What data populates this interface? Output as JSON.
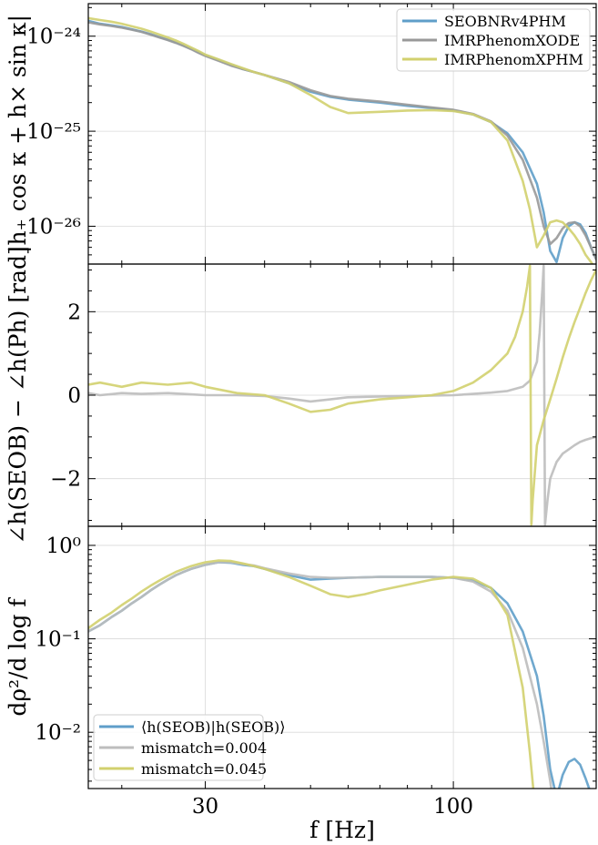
{
  "chart_data": [
    {
      "type": "line",
      "panel": "amplitude",
      "ylabel": "|h₊ cos κ + h× sin κ|",
      "yscale": "log",
      "xscale": "log",
      "xlim": [
        17,
        200
      ],
      "ylim": [
        4e-27,
        2.2e-24
      ],
      "yticks": [
        1e-26,
        1e-25,
        1e-24
      ],
      "ytick_labels": [
        "10⁻²⁶",
        "10⁻²⁵",
        "10⁻²⁴"
      ],
      "grid": true,
      "legend": "top-right",
      "series": [
        {
          "name": "SEOBNRv4PHM",
          "color": "#5f9ec9",
          "x": [
            17,
            18,
            19,
            20,
            21,
            22,
            23,
            24,
            25,
            26,
            27,
            28,
            29,
            30,
            32,
            34,
            36,
            38,
            40,
            45,
            50,
            55,
            60,
            70,
            80,
            90,
            100,
            110,
            120,
            130,
            140,
            150,
            155,
            160,
            165,
            170,
            175,
            180,
            185,
            190,
            195,
            200
          ],
          "y": [
            1.45e-24,
            1.35e-24,
            1.3e-24,
            1.25e-24,
            1.18e-24,
            1.12e-24,
            1.05e-24,
            9.8e-25,
            9.2e-25,
            8.6e-25,
            8e-25,
            7.4e-25,
            6.8e-25,
            6.3e-25,
            5.6e-25,
            5e-25,
            4.5e-25,
            4.2e-25,
            3.9e-25,
            3.2e-25,
            2.6e-25,
            2.3e-25,
            2.15e-25,
            2e-25,
            1.85e-25,
            1.75e-25,
            1.65e-25,
            1.5e-25,
            1.25e-25,
            9.5e-26,
            6e-26,
            2.8e-26,
            1.4e-26,
            5.5e-27,
            4.2e-27,
            7.5e-27,
            1e-26,
            1.1e-26,
            1.05e-26,
            8.5e-27,
            6e-27,
            4.5e-27
          ]
        },
        {
          "name": "IMRPhenomXODE",
          "color": "#999999",
          "x": [
            17,
            18,
            19,
            20,
            21,
            22,
            23,
            24,
            25,
            26,
            27,
            28,
            29,
            30,
            32,
            34,
            36,
            38,
            40,
            45,
            50,
            55,
            60,
            70,
            80,
            90,
            100,
            110,
            120,
            130,
            140,
            150,
            155,
            160,
            165,
            170,
            175,
            180,
            185,
            190,
            195,
            200
          ],
          "y": [
            1.4e-24,
            1.33e-24,
            1.28e-24,
            1.23e-24,
            1.17e-24,
            1.11e-24,
            1.04e-24,
            9.7e-25,
            9.1e-25,
            8.5e-25,
            7.9e-25,
            7.3e-25,
            6.7e-25,
            6.2e-25,
            5.5e-25,
            4.9e-25,
            4.5e-25,
            4.2e-25,
            3.9e-25,
            3.3e-25,
            2.7e-25,
            2.35e-25,
            2.2e-25,
            2.05e-25,
            1.9e-25,
            1.78e-25,
            1.68e-25,
            1.52e-25,
            1.27e-25,
            9e-26,
            5e-26,
            2e-26,
            1e-26,
            6.5e-27,
            7.5e-27,
            9.5e-27,
            1.08e-26,
            1.1e-26,
            1e-26,
            8e-27,
            6e-27,
            4.5e-27
          ]
        },
        {
          "name": "IMRPhenomXPHM",
          "color": "#d2d06e",
          "x": [
            17,
            18,
            19,
            20,
            21,
            22,
            23,
            24,
            25,
            26,
            27,
            28,
            29,
            30,
            32,
            34,
            36,
            38,
            40,
            45,
            50,
            55,
            60,
            70,
            80,
            90,
            100,
            110,
            120,
            130,
            140,
            145,
            150,
            155,
            160,
            165,
            170,
            175,
            180,
            185,
            190,
            195,
            200
          ],
          "y": [
            1.55e-24,
            1.48e-24,
            1.42e-24,
            1.35e-24,
            1.27e-24,
            1.2e-24,
            1.12e-24,
            1.04e-24,
            9.7e-25,
            9e-25,
            8.3e-25,
            7.6e-25,
            7e-25,
            6.4e-25,
            5.7e-25,
            5.1e-25,
            4.6e-25,
            4.2e-25,
            3.9e-25,
            3.2e-25,
            2.4e-25,
            1.8e-25,
            1.55e-25,
            1.6e-25,
            1.65e-25,
            1.67e-25,
            1.63e-25,
            1.5e-25,
            1.25e-25,
            8e-26,
            3e-26,
            1.5e-26,
            6e-27,
            8e-27,
            1.1e-26,
            1.15e-26,
            1.1e-26,
            9.5e-27,
            8e-27,
            6.5e-27,
            5e-27,
            4.2e-27,
            3.5e-27
          ]
        }
      ]
    },
    {
      "type": "line",
      "panel": "phase",
      "ylabel": "∠h(SEOB) − ∠h(Ph) [rad]",
      "xscale": "log",
      "xlim": [
        17,
        200
      ],
      "ylim": [
        -3.14159,
        3.14159
      ],
      "yticks": [
        -2,
        0,
        2
      ],
      "ytick_labels": [
        "−2",
        "0",
        "2"
      ],
      "grid": true,
      "series": [
        {
          "name": "mismatch=0.004",
          "color": "#bdbdbd",
          "x": [
            17,
            18,
            20,
            22,
            25,
            28,
            30,
            35,
            40,
            45,
            50,
            55,
            60,
            70,
            80,
            90,
            100,
            110,
            120,
            130,
            140,
            145,
            150,
            152,
            154,
            155,
            156,
            158,
            160,
            165,
            170,
            175,
            180,
            185,
            190,
            195,
            200
          ],
          "y": [
            0.05,
            0.0,
            0.05,
            0.03,
            0.05,
            0.02,
            0.0,
            0.0,
            -0.02,
            -0.08,
            -0.15,
            -0.1,
            -0.05,
            -0.03,
            -0.02,
            -0.01,
            0.0,
            0.03,
            0.06,
            0.1,
            0.2,
            0.35,
            0.8,
            1.5,
            2.5,
            3.1,
            -3.1,
            -2.5,
            -2.0,
            -1.6,
            -1.4,
            -1.3,
            -1.2,
            -1.12,
            -1.07,
            -1.03,
            -1.0
          ]
        },
        {
          "name": "mismatch=0.045",
          "color": "#d2d06e",
          "x": [
            17,
            18,
            20,
            22,
            25,
            28,
            30,
            35,
            40,
            45,
            50,
            55,
            60,
            70,
            80,
            90,
            100,
            110,
            120,
            130,
            135,
            140,
            143,
            145,
            146,
            147,
            150,
            155,
            160,
            165,
            170,
            175,
            180,
            185,
            190,
            195,
            200
          ],
          "y": [
            0.25,
            0.3,
            0.2,
            0.3,
            0.25,
            0.3,
            0.2,
            0.05,
            0.0,
            -0.2,
            -0.4,
            -0.35,
            -0.2,
            -0.1,
            -0.05,
            0.0,
            0.1,
            0.3,
            0.6,
            1.0,
            1.4,
            2.0,
            2.6,
            3.1,
            -3.1,
            -2.5,
            -1.2,
            -0.6,
            -0.1,
            0.4,
            0.9,
            1.35,
            1.75,
            2.1,
            2.45,
            2.75,
            3.0
          ]
        }
      ]
    },
    {
      "type": "line",
      "panel": "snr-density",
      "ylabel": "dρ²/d log f",
      "xlabel": "f [Hz]",
      "yscale": "log",
      "xscale": "log",
      "xlim": [
        17,
        200
      ],
      "ylim": [
        0.0025,
        1.6
      ],
      "yticks": [
        0.01,
        0.1,
        1
      ],
      "ytick_labels": [
        "10⁻²",
        "10⁻¹",
        "10⁰"
      ],
      "xticks": [
        30,
        100
      ],
      "xtick_labels": [
        "30",
        "100"
      ],
      "grid": true,
      "legend": "bottom-left",
      "series": [
        {
          "name": "⟨h(SEOB)|h(SEOB)⟩",
          "color": "#5f9ec9",
          "x": [
            17,
            18,
            19,
            20,
            21,
            22,
            23,
            24,
            25,
            26,
            27,
            28,
            29,
            30,
            32,
            34,
            36,
            38,
            40,
            45,
            50,
            55,
            60,
            70,
            80,
            90,
            100,
            110,
            120,
            130,
            140,
            150,
            155,
            160,
            165,
            170,
            175,
            180,
            185,
            190,
            195,
            200
          ],
          "y": [
            0.12,
            0.14,
            0.17,
            0.2,
            0.24,
            0.28,
            0.33,
            0.38,
            0.43,
            0.48,
            0.52,
            0.56,
            0.59,
            0.62,
            0.66,
            0.65,
            0.62,
            0.6,
            0.56,
            0.48,
            0.43,
            0.44,
            0.45,
            0.46,
            0.46,
            0.46,
            0.45,
            0.42,
            0.35,
            0.24,
            0.12,
            0.04,
            0.015,
            0.004,
            0.002,
            0.0035,
            0.0048,
            0.0052,
            0.0045,
            0.0032,
            0.0022,
            0.0015
          ]
        },
        {
          "name": "mismatch=0.004",
          "color": "#bdbdbd",
          "x": [
            17,
            18,
            19,
            20,
            21,
            22,
            23,
            24,
            25,
            26,
            27,
            28,
            29,
            30,
            32,
            34,
            36,
            38,
            40,
            45,
            50,
            55,
            60,
            70,
            80,
            90,
            100,
            110,
            120,
            130,
            140,
            150,
            155,
            160,
            163
          ],
          "y": [
            0.12,
            0.14,
            0.17,
            0.2,
            0.24,
            0.28,
            0.33,
            0.38,
            0.43,
            0.48,
            0.52,
            0.56,
            0.59,
            0.62,
            0.66,
            0.66,
            0.63,
            0.61,
            0.57,
            0.5,
            0.46,
            0.45,
            0.45,
            0.46,
            0.46,
            0.46,
            0.45,
            0.41,
            0.32,
            0.2,
            0.08,
            0.02,
            0.008,
            0.003,
            0.0015
          ]
        },
        {
          "name": "mismatch=0.045",
          "color": "#d2d06e",
          "x": [
            17,
            18,
            19,
            20,
            21,
            22,
            23,
            24,
            25,
            26,
            27,
            28,
            29,
            30,
            32,
            34,
            36,
            38,
            40,
            45,
            50,
            55,
            60,
            65,
            70,
            80,
            90,
            100,
            110,
            120,
            130,
            140,
            145,
            148
          ],
          "y": [
            0.13,
            0.16,
            0.19,
            0.23,
            0.27,
            0.32,
            0.37,
            0.42,
            0.47,
            0.52,
            0.56,
            0.6,
            0.63,
            0.66,
            0.69,
            0.68,
            0.64,
            0.6,
            0.56,
            0.46,
            0.37,
            0.3,
            0.28,
            0.3,
            0.33,
            0.38,
            0.43,
            0.46,
            0.44,
            0.35,
            0.18,
            0.03,
            0.006,
            0.002
          ]
        }
      ]
    }
  ]
}
